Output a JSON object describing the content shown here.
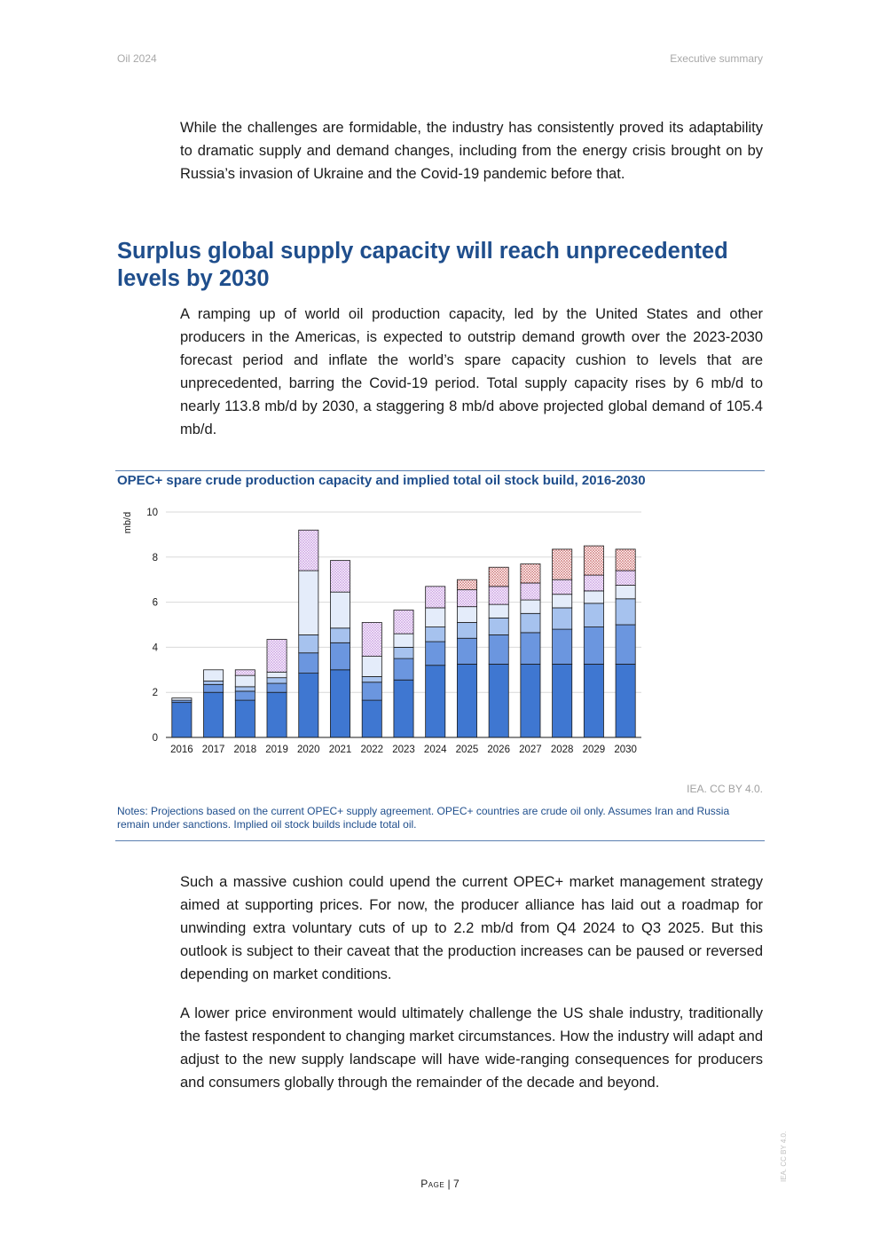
{
  "header": {
    "left": "Oil 2024",
    "right": "Executive summary"
  },
  "paragraphs": {
    "p1": "While the challenges are formidable, the industry has consistently proved its adaptability to dramatic supply and demand changes, including from the energy crisis brought on by Russia’s invasion of Ukraine and the Covid-19 pandemic before that.",
    "p2": "A ramping up of world oil production capacity, led by the United States and other producers in the Americas, is expected to outstrip demand growth over the 2023-2030 forecast period and inflate the world’s spare capacity cushion to levels that are unprecedented, barring the Covid-19 period. Total supply capacity rises by 6 mb/d to nearly 113.8 mb/d by 2030, a staggering 8 mb/d above projected global demand of 105.4 mb/d.",
    "p3": "Such a massive cushion could upend the current OPEC+ market management strategy aimed at supporting prices. For now, the producer alliance has laid out a roadmap for unwinding extra voluntary cuts of up to 2.2 mb/d from Q4 2024 to Q3 2025. But this outlook is subject to their caveat that the production increases can be paused or reversed depending on market conditions.",
    "p4": "A lower price environment would ultimately challenge the US shale industry, traditionally the fastest respondent to changing market circumstances. How the industry will adapt and adjust to the new supply landscape will have wide-ranging consequences for producers and consumers globally through the remainder of the decade and beyond."
  },
  "section_heading": "Surplus global supply capacity will reach unprecedented levels by 2030",
  "figure": {
    "title": "OPEC+ spare crude production capacity and implied total oil stock build, 2016-2030",
    "source": "IEA. CC BY 4.0.",
    "notes": "Notes: Projections based on the current OPEC+ supply agreement. OPEC+ countries are crude oil only. Assumes Iran and Russia remain under sanctions. Implied oil stock builds include total oil."
  },
  "chart_data": {
    "type": "bar",
    "stacked": true,
    "ylabel": "mb/d",
    "ylim": [
      0,
      10
    ],
    "yticks": [
      0,
      2,
      4,
      6,
      8,
      10
    ],
    "grid": true,
    "categories": [
      "2016",
      "2017",
      "2018",
      "2019",
      "2020",
      "2021",
      "2022",
      "2023",
      "2024",
      "2025",
      "2026",
      "2027",
      "2028",
      "2029",
      "2030"
    ],
    "series": [
      {
        "color": "#3f77d1",
        "pattern": "solid",
        "values": [
          1.55,
          2.0,
          1.65,
          2.0,
          2.85,
          3.0,
          1.65,
          2.55,
          3.2,
          3.25,
          3.25,
          3.25,
          3.25,
          3.25,
          3.25
        ]
      },
      {
        "color": "#6b96df",
        "pattern": "solid",
        "values": [
          0.1,
          0.35,
          0.4,
          0.4,
          0.9,
          1.2,
          0.8,
          0.95,
          1.05,
          1.15,
          1.3,
          1.4,
          1.55,
          1.65,
          1.75
        ]
      },
      {
        "color": "#a6c2ee",
        "pattern": "solid",
        "values": [
          0.0,
          0.15,
          0.2,
          0.25,
          0.8,
          0.65,
          0.25,
          0.5,
          0.65,
          0.7,
          0.75,
          0.85,
          0.95,
          1.05,
          1.15
        ]
      },
      {
        "color": "#e4ecfa",
        "pattern": "solid",
        "values": [
          0.1,
          0.5,
          0.5,
          0.25,
          2.85,
          1.6,
          0.9,
          0.6,
          0.85,
          0.7,
          0.6,
          0.6,
          0.6,
          0.55,
          0.6
        ]
      },
      {
        "color": "#b97fd6",
        "pattern": "dots-purple",
        "values": [
          0.0,
          0.0,
          0.25,
          1.45,
          1.8,
          1.4,
          1.5,
          1.05,
          0.95,
          0.75,
          0.8,
          0.75,
          0.65,
          0.7,
          0.65
        ]
      },
      {
        "color": "#b33a3a",
        "pattern": "dots-red",
        "values": [
          0.0,
          0.0,
          0.0,
          0.0,
          0.0,
          0.0,
          0.0,
          0.0,
          0.0,
          0.45,
          0.85,
          0.85,
          1.35,
          1.3,
          0.95
        ]
      }
    ]
  },
  "footer": {
    "page_label": "Page",
    "page_number": "7",
    "side_mark": "IEA. CC BY 4.0."
  }
}
